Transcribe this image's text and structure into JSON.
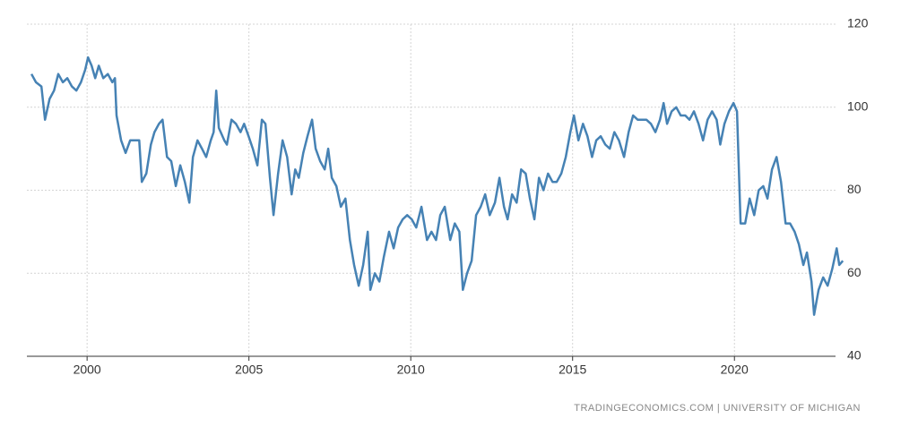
{
  "chart_data": {
    "type": "line",
    "source": "TRADINGECONOMICS.COM | UNIVERSITY OF MICHIGAN",
    "xlim": [
      1998.14,
      2023.4
    ],
    "ylim": [
      40,
      120
    ],
    "xticks": [
      2000,
      2005,
      2010,
      2015,
      2020
    ],
    "yticks": [
      40,
      60,
      80,
      100,
      120
    ],
    "grid": true,
    "series": [
      {
        "color": "#4682b4",
        "x": [
          1998.28,
          1998.42,
          1998.59,
          1998.7,
          1998.84,
          1998.98,
          1999.11,
          1999.25,
          1999.39,
          1999.53,
          1999.67,
          1999.81,
          1999.94,
          2000.03,
          2000.14,
          2000.25,
          2000.36,
          2000.5,
          2000.64,
          2000.78,
          2000.86,
          2000.91,
          2001.05,
          2001.19,
          2001.33,
          2001.47,
          2001.61,
          2001.69,
          2001.83,
          2001.97,
          2002.08,
          2002.22,
          2002.33,
          2002.47,
          2002.6,
          2002.74,
          2002.88,
          2003.02,
          2003.16,
          2003.27,
          2003.41,
          2003.55,
          2003.68,
          2003.82,
          2003.91,
          2003.99,
          2004.07,
          2004.24,
          2004.32,
          2004.46,
          2004.6,
          2004.74,
          2004.85,
          2004.99,
          2005.12,
          2005.26,
          2005.4,
          2005.51,
          2005.65,
          2005.76,
          2005.9,
          2006.04,
          2006.18,
          2006.32,
          2006.43,
          2006.54,
          2006.68,
          2006.81,
          2006.95,
          2007.06,
          2007.2,
          2007.34,
          2007.45,
          2007.56,
          2007.7,
          2007.84,
          2007.98,
          2008.12,
          2008.25,
          2008.39,
          2008.53,
          2008.67,
          2008.75,
          2008.89,
          2009.03,
          2009.17,
          2009.33,
          2009.47,
          2009.61,
          2009.75,
          2009.89,
          2010.03,
          2010.17,
          2010.33,
          2010.5,
          2010.64,
          2010.78,
          2010.91,
          2011.05,
          2011.22,
          2011.36,
          2011.5,
          2011.61,
          2011.74,
          2011.88,
          2012.02,
          2012.16,
          2012.3,
          2012.44,
          2012.6,
          2012.74,
          2012.88,
          2012.99,
          2013.13,
          2013.27,
          2013.41,
          2013.55,
          2013.68,
          2013.82,
          2013.96,
          2014.1,
          2014.24,
          2014.38,
          2014.51,
          2014.65,
          2014.79,
          2014.93,
          2015.04,
          2015.18,
          2015.32,
          2015.46,
          2015.6,
          2015.73,
          2015.87,
          2016.01,
          2016.15,
          2016.29,
          2016.43,
          2016.59,
          2016.73,
          2016.87,
          2017.01,
          2017.15,
          2017.28,
          2017.42,
          2017.56,
          2017.7,
          2017.81,
          2017.92,
          2018.06,
          2018.2,
          2018.34,
          2018.48,
          2018.61,
          2018.75,
          2018.89,
          2019.03,
          2019.17,
          2019.31,
          2019.45,
          2019.56,
          2019.69,
          2019.83,
          2019.97,
          2020.08,
          2020.19,
          2020.33,
          2020.47,
          2020.61,
          2020.75,
          2020.89,
          2021.02,
          2021.16,
          2021.3,
          2021.44,
          2021.58,
          2021.72,
          2021.86,
          2021.99,
          2022.13,
          2022.24,
          2022.38,
          2022.46,
          2022.6,
          2022.74,
          2022.88,
          2023.02,
          2023.16,
          2023.24,
          2023.35
        ],
        "values": [
          108,
          106,
          105,
          97,
          102,
          104,
          108,
          106,
          107,
          105,
          104,
          106,
          109,
          112,
          110,
          107,
          110,
          107,
          108,
          106,
          107,
          98,
          92,
          89,
          92,
          92,
          92,
          82,
          84,
          91,
          94,
          96,
          97,
          88,
          87,
          81,
          86,
          82,
          77,
          88,
          92,
          90,
          88,
          92,
          94,
          104,
          95,
          92,
          91,
          97,
          96,
          94,
          96,
          93,
          90,
          86,
          97,
          96,
          83,
          74,
          84,
          92,
          88,
          79,
          85,
          83,
          89,
          93,
          97,
          90,
          87,
          85,
          90,
          83,
          81,
          76,
          78,
          68,
          62,
          57,
          62,
          70,
          56,
          60,
          58,
          64,
          70,
          66,
          71,
          73,
          74,
          73,
          71,
          76,
          68,
          70,
          68,
          74,
          76,
          68,
          72,
          70,
          56,
          60,
          63,
          74,
          76,
          79,
          74,
          77,
          83,
          76,
          73,
          79,
          77,
          85,
          84,
          78,
          73,
          83,
          80,
          84,
          82,
          82,
          84,
          88,
          94,
          98,
          92,
          96,
          93,
          88,
          92,
          93,
          91,
          90,
          94,
          92,
          88,
          94,
          98,
          97,
          97,
          97,
          96,
          94,
          97,
          101,
          96,
          99,
          100,
          98,
          98,
          97,
          99,
          96,
          92,
          97,
          99,
          97,
          91,
          96,
          99,
          101,
          99,
          72,
          72,
          78,
          74,
          80,
          81,
          78,
          85,
          88,
          82,
          72,
          72,
          70,
          67,
          62,
          65,
          58,
          50,
          56,
          59,
          57,
          61,
          66,
          62,
          63
        ]
      }
    ]
  }
}
